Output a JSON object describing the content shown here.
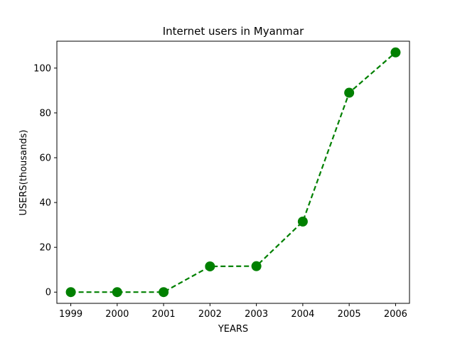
{
  "chart_data": {
    "type": "line",
    "title": "Internet users in Myanmar",
    "xlabel": "YEARS",
    "ylabel": "USERS(thousands)",
    "x": [
      "1999",
      "2000",
      "2001",
      "2002",
      "2003",
      "2004",
      "2005",
      "2006"
    ],
    "series": [
      {
        "values": [
          0,
          0,
          0,
          11.5,
          11.6,
          31.5,
          89,
          107
        ],
        "color": "#008000",
        "line_style": "dashed",
        "marker": "circle"
      }
    ],
    "xlim": [
      1998.7,
      2006.3
    ],
    "ylim": [
      -5,
      112
    ],
    "yticks": [
      0,
      20,
      40,
      60,
      80,
      100
    ],
    "grid": false,
    "legend": "none"
  }
}
